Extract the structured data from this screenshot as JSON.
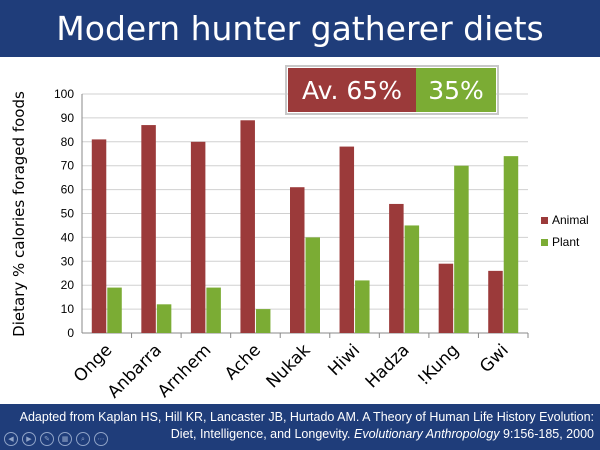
{
  "title": "Modern hunter gatherer diets",
  "average_box": {
    "animal_text": "Av.  65%",
    "plant_text": "35%",
    "animal_color": "#9b3a3a",
    "plant_color": "#7bac34"
  },
  "chart_data": {
    "type": "bar",
    "ylabel": "Dietary % calories foraged foods",
    "xlabel": "",
    "ylim": [
      0,
      100
    ],
    "yticks": [
      0,
      10,
      20,
      30,
      40,
      50,
      60,
      70,
      80,
      90,
      100
    ],
    "grid": true,
    "legend_position": "right",
    "categories": [
      "Onge",
      "Anbarra",
      "Arnhem",
      "Ache",
      "Nukak",
      "Hiwi",
      "Hadza",
      "!Kung",
      "Gwi"
    ],
    "series": [
      {
        "name": "Animal",
        "color": "#9b3a3a",
        "values": [
          81,
          87,
          80,
          89,
          61,
          78,
          54,
          29,
          26
        ]
      },
      {
        "name": "Plant",
        "color": "#7bac34",
        "values": [
          19,
          12,
          19,
          10,
          40,
          22,
          45,
          70,
          74
        ]
      }
    ]
  },
  "citation": {
    "line1": "Adapted from Kaplan HS, Hill KR, Lancaster JB, Hurtado AM. A Theory of Human Life History Evolution:",
    "line2_start": "Diet, Intelligence, and Longevity. ",
    "journal": "Evolutionary Anthropology",
    "line2_end": " 9:156-185, 2000"
  },
  "controls": [
    {
      "icon": "prev-icon",
      "glyph": "◀"
    },
    {
      "icon": "next-icon",
      "glyph": "▶"
    },
    {
      "icon": "pen-icon",
      "glyph": "✎"
    },
    {
      "icon": "slides-icon",
      "glyph": "▦"
    },
    {
      "icon": "zoom-icon",
      "glyph": "⌕"
    },
    {
      "icon": "more-icon",
      "glyph": "⋯"
    }
  ]
}
